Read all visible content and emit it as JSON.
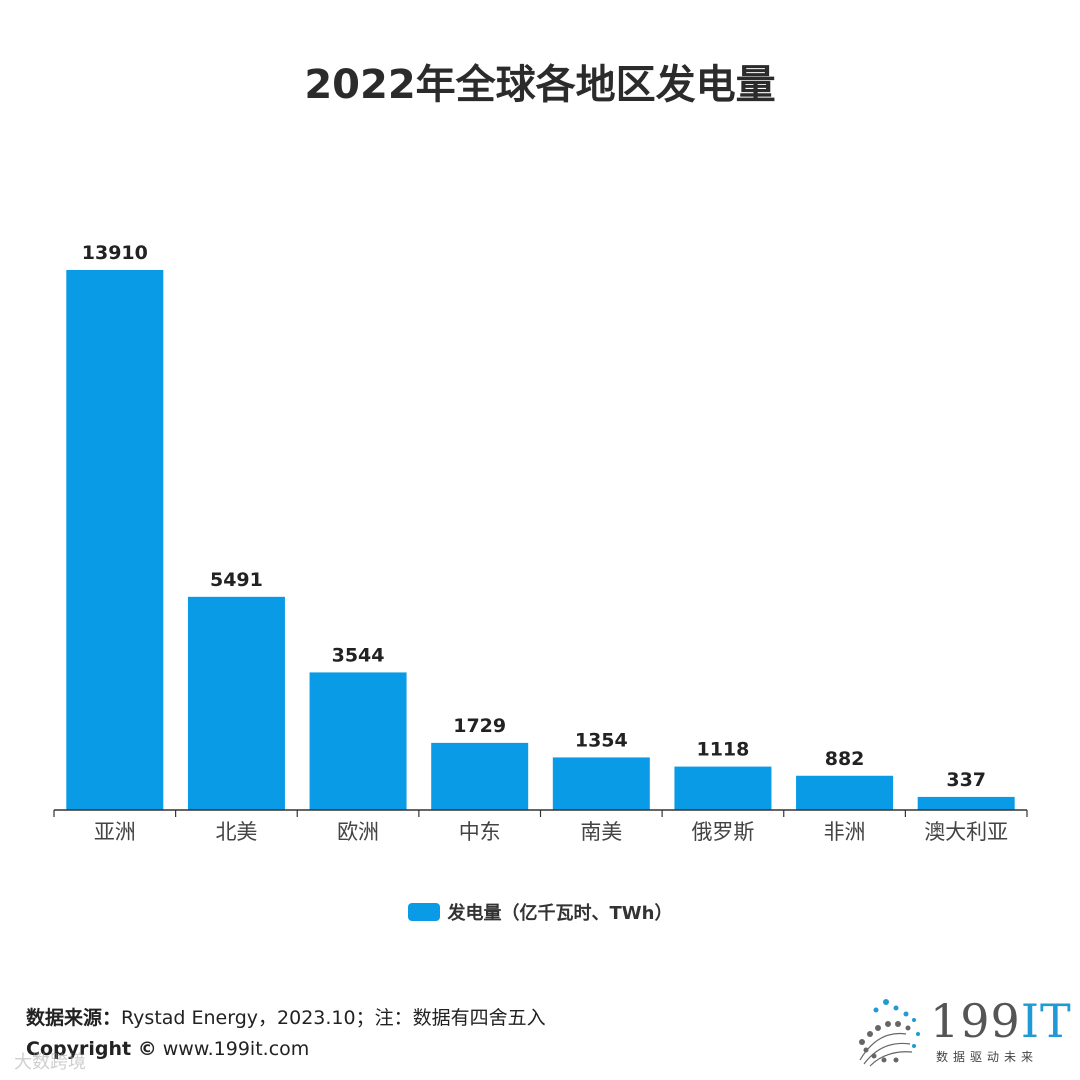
{
  "page_title": "2022年全球各地区发电量",
  "chart_data": {
    "type": "bar",
    "title": "2022年全球各地区发电量",
    "categories": [
      "亚洲",
      "北美",
      "欧洲",
      "中东",
      "南美",
      "俄罗斯",
      "非洲",
      "澳大利亚"
    ],
    "series": [
      {
        "name": "发电量（亿千瓦时、TWh）",
        "values": [
          13910,
          5491,
          3544,
          1729,
          1354,
          1118,
          882,
          337
        ]
      }
    ],
    "value_labels": [
      "13910",
      "5491",
      "3544",
      "1729",
      "1354",
      "1118",
      "882",
      "337"
    ],
    "xlabel": "",
    "ylabel": "",
    "ylim": [
      0,
      13910
    ],
    "grid": false,
    "legend": "bottom-center",
    "bar_color": "#0a9be6"
  },
  "legend": {
    "label": "发电量（亿千瓦时、TWh）",
    "color": "#0a9be6"
  },
  "footer": {
    "source_label": "数据来源：",
    "source_text": "Rystad Energy，2023.10；注：数据有四舍五入",
    "copyright_label": "Copyright ©",
    "copyright_text": " www.199it.com"
  },
  "logo": {
    "main": "199",
    "accent": "IT",
    "tagline": "数据驱动未来"
  },
  "watermark": "大数跨境"
}
